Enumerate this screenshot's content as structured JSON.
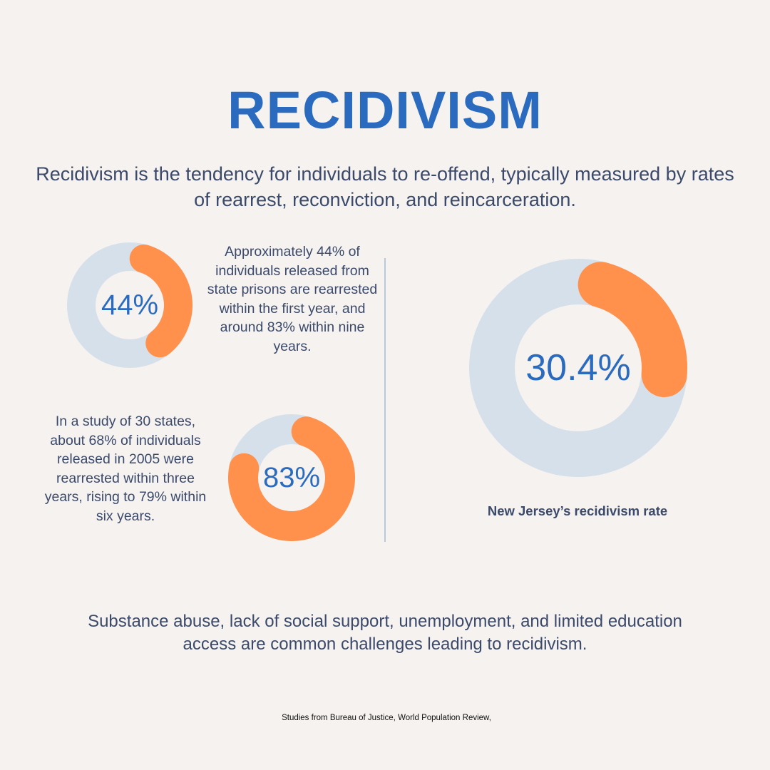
{
  "title": "RECIDIVISM",
  "intro": "Recidivism is the tendency for individuals to re-offend, typically measured by rates of rearrest, reconviction, and reincarceration.",
  "colors": {
    "accent": "#ff914d",
    "track": "#d6e0ea",
    "heading": "#2a6bbf",
    "text": "#3b4a6b",
    "background": "#f5f2ef"
  },
  "chart_data": [
    {
      "type": "pie",
      "label": "44%",
      "value": 44,
      "max": 100,
      "text": "Approximately 44% of individuals released from state prisons are rearrested within the first year, and around 83% within nine years."
    },
    {
      "type": "pie",
      "label": "83%",
      "value": 83,
      "max": 100,
      "text": "In a study of 30 states, about 68% of individuals released in 2005 were rearrested within three years, rising to 79% within six years."
    },
    {
      "type": "pie",
      "label": "30.4%",
      "value": 30.4,
      "max": 100,
      "caption": "New Jersey’s recidivism rate"
    }
  ],
  "footer": "Substance abuse, lack of social support, unemployment, and limited education access are common challenges leading to recidivism.",
  "sources": "Studies from Bureau of Justice, World Population Review,"
}
